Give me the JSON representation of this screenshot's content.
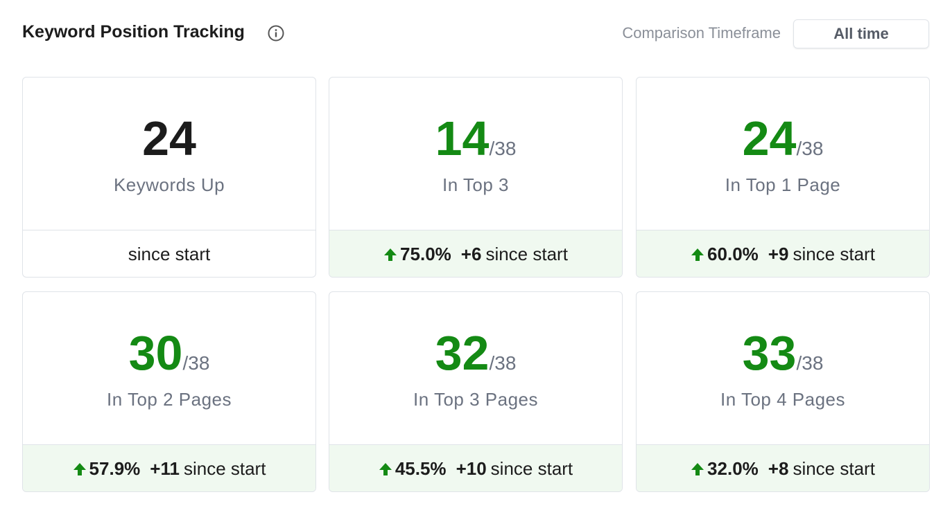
{
  "header": {
    "title": "Keyword Position Tracking",
    "timeframe_label": "Comparison Timeframe",
    "timeframe_value": "All time"
  },
  "cards": [
    {
      "value": "24",
      "label": "Keywords Up",
      "footer": "since start"
    },
    {
      "value": "14",
      "total": "/38",
      "label": "In Top 3",
      "change": "75.0%",
      "delta": "+6",
      "footer": "since start"
    },
    {
      "value": "24",
      "total": "/38",
      "label": "In Top 1 Page",
      "change": "60.0%",
      "delta": "+9",
      "footer": "since start"
    },
    {
      "value": "30",
      "total": "/38",
      "label": "In Top 2 Pages",
      "change": "57.9%",
      "delta": "+11",
      "footer": "since start"
    },
    {
      "value": "32",
      "total": "/38",
      "label": "In Top 3 Pages",
      "change": "45.5%",
      "delta": "+10",
      "footer": "since start"
    },
    {
      "value": "33",
      "total": "/38",
      "label": "In Top 4 Pages",
      "change": "32.0%",
      "delta": "+8",
      "footer": "since start"
    }
  ]
}
